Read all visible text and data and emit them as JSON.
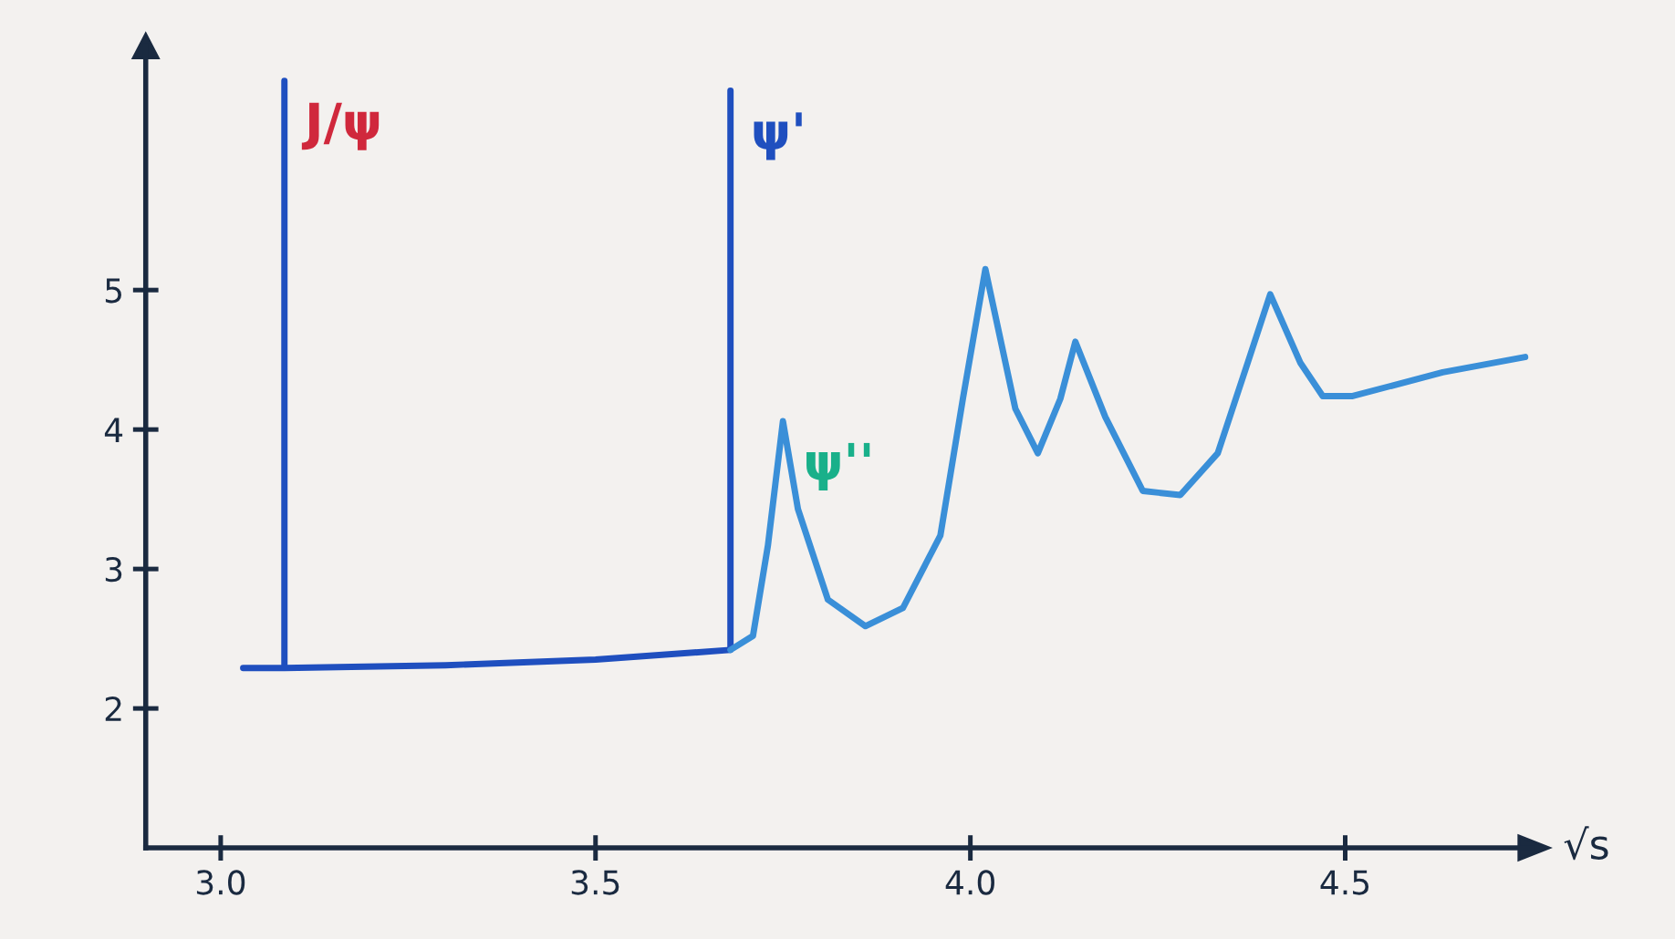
{
  "chart_data": {
    "type": "line",
    "xlabel": "√s",
    "xlim": [
      2.9,
      4.75
    ],
    "ylim": [
      1.0,
      6.75
    ],
    "xticks": [
      {
        "value": 3.0,
        "label": "3.0"
      },
      3.5,
      {
        "value": 4.0,
        "label": "4.0"
      },
      4.5
    ],
    "yticks": [
      2,
      3,
      4,
      5
    ],
    "grid": false,
    "line_style": "solid",
    "marker": "none",
    "series": [
      {
        "color": "#1f4fbf",
        "x": [
          3.03,
          3.085,
          3.085,
          3.085,
          3.3,
          3.5,
          3.68,
          3.68,
          3.68
        ],
        "values": [
          2.29,
          2.29,
          6.5,
          2.29,
          2.31,
          2.35,
          2.42,
          6.43,
          2.42
        ]
      },
      {
        "color": "#3a8fd8",
        "x": [
          3.68,
          3.71,
          3.73,
          3.75,
          3.77,
          3.81,
          3.86,
          3.91,
          3.96,
          3.99,
          4.02,
          4.06,
          4.09,
          4.12,
          4.14,
          4.18,
          4.23,
          4.28,
          4.33,
          4.37,
          4.4,
          4.44,
          4.47,
          4.51,
          4.63,
          4.74
        ],
        "values": [
          2.42,
          2.52,
          3.17,
          4.06,
          3.43,
          2.78,
          2.59,
          2.72,
          3.24,
          4.22,
          5.15,
          4.15,
          3.83,
          4.22,
          4.63,
          4.09,
          3.56,
          3.53,
          3.83,
          4.48,
          4.97,
          4.48,
          4.24,
          4.24,
          4.41,
          4.52
        ]
      }
    ],
    "annotations": [
      {
        "text": "J/ψ",
        "x": 3.085,
        "y": 6.5
      },
      {
        "text": "ψ'",
        "x": 3.68,
        "y": 6.43
      },
      {
        "text": "ψ''",
        "x": 3.75,
        "y": 4.06
      }
    ]
  }
}
